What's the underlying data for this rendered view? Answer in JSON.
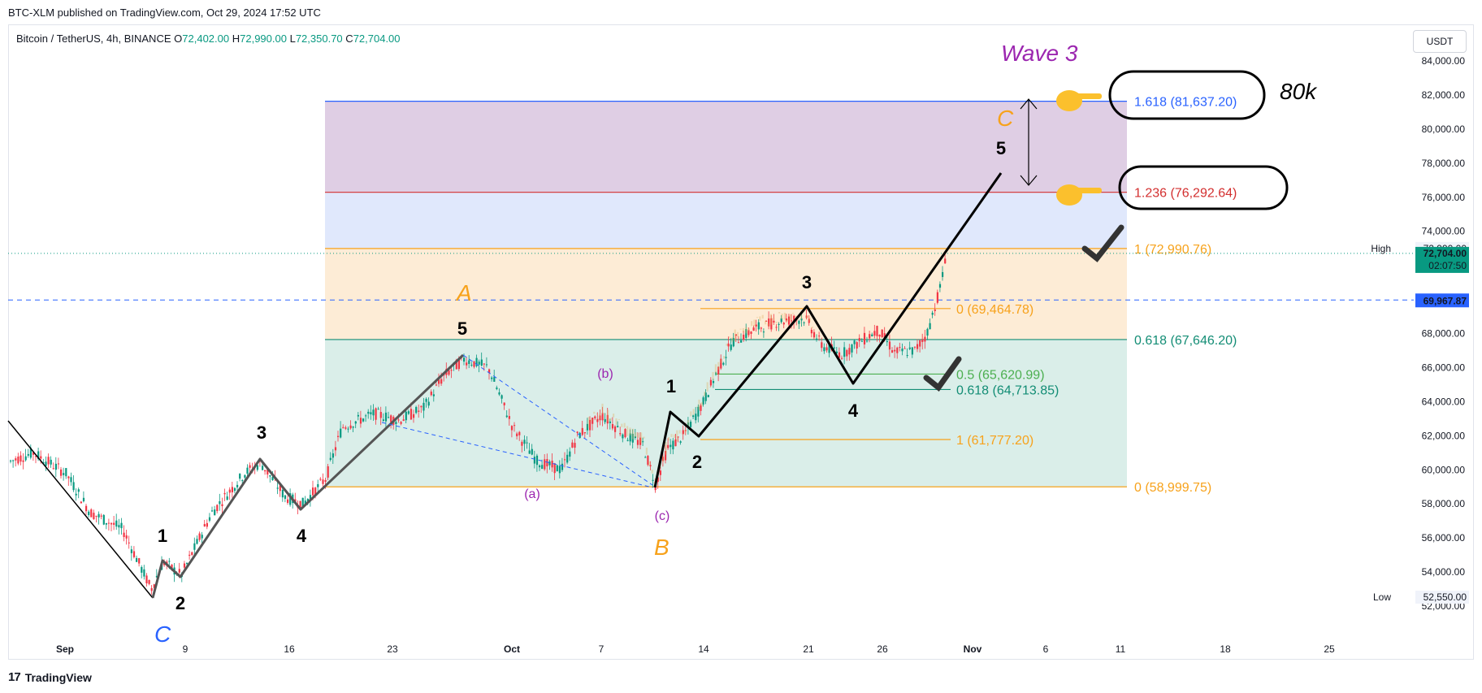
{
  "header": {
    "published": "BTC-XLM published on TradingView.com, Oct 29, 2024 17:52 UTC",
    "symbol": "Bitcoin / TetherUS, 4h, BINANCE",
    "o_label": "O",
    "o_value": "72,402.00",
    "h_label": "H",
    "h_value": "72,990.00",
    "l_label": "L",
    "l_value": "72,350.70",
    "c_label": "C",
    "c_value": "72,704.00",
    "currency_button": "USDT"
  },
  "footer": {
    "brand": "TradingView",
    "logo_mark": "17"
  },
  "chart_data": {
    "type": "candlestick",
    "symbol": "BTCUSDT",
    "interval": "4h",
    "ylim": [
      51000,
      84000
    ],
    "y_ticks": [
      "52,000.00",
      "54,000.00",
      "56,000.00",
      "58,000.00",
      "60,000.00",
      "62,000.00",
      "64,000.00",
      "66,000.00",
      "68,000.00",
      "70,000.00",
      "72,000.00",
      "74,000.00",
      "76,000.00",
      "78,000.00",
      "80,000.00",
      "82,000.00",
      "84,000.00"
    ],
    "x_ticks": [
      "Sep",
      "9",
      "16",
      "23",
      "Oct",
      "7",
      "14",
      "21",
      "26",
      "Nov",
      "6",
      "11",
      "18",
      "25"
    ],
    "price_labels": {
      "high_label": "High",
      "high_value": "72,990.00",
      "last_value": "72,704.00",
      "countdown": "02:07:50",
      "line_value": "69,967.87",
      "low_label": "Low",
      "low_value": "52,550.00"
    },
    "fib_levels": [
      {
        "label": "1.618 (81,637.20)",
        "price": 81637.2,
        "color": "#2962ff"
      },
      {
        "label": "1.236 (76,292.64)",
        "price": 76292.64,
        "color": "#d32f2f"
      },
      {
        "label": "1 (72,990.76)",
        "price": 72990.76,
        "color": "#f7a21b"
      },
      {
        "label": "0.618 (67,646.20)",
        "price": 67646.2,
        "color": "#138d75"
      },
      {
        "label": "0 (58,999.75)",
        "price": 58999.75,
        "color": "#f7a21b"
      }
    ],
    "inner_fib_levels": [
      {
        "label": "0 (69,464.78)",
        "price": 69464.78,
        "color": "#f7a21b"
      },
      {
        "label": "0.5 (65,620.99)",
        "price": 65620.99,
        "color": "#4caf50"
      },
      {
        "label": "0.618 (64,713.85)",
        "price": 64713.85,
        "color": "#138d75"
      },
      {
        "label": "1 (61,777.20)",
        "price": 61777.2,
        "color": "#f7a21b"
      }
    ],
    "annotations": {
      "wave3": "Wave 3",
      "target": "80k",
      "A": "A",
      "B": "B",
      "C_main": "C",
      "C_early": "C",
      "sub_a": "(a)",
      "sub_b": "(b)",
      "sub_c": "(c)",
      "w1": "1",
      "w2": "2",
      "w3": "3",
      "w4": "4",
      "w5": "5",
      "i1": "1",
      "i2": "2",
      "i3": "3",
      "i4": "4",
      "i5": "5",
      "p5": "5"
    }
  }
}
